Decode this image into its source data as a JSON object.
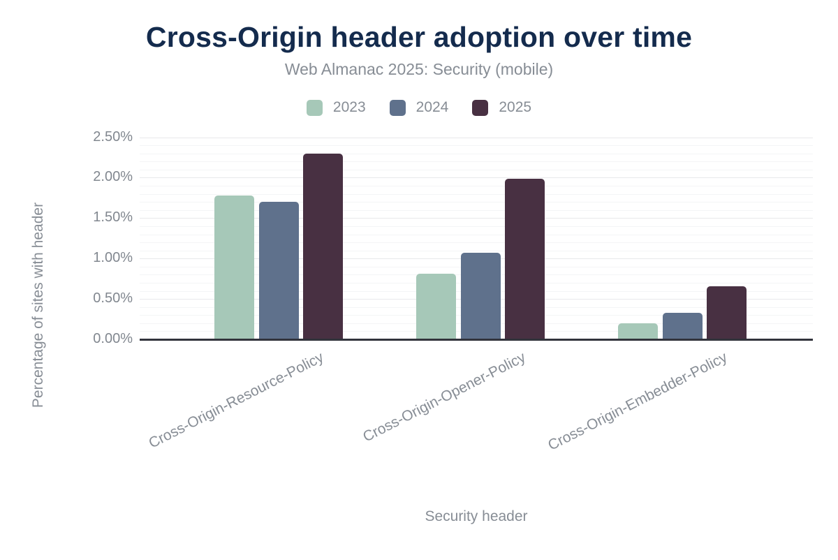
{
  "header": {
    "title": "Cross-Origin header adoption over time",
    "subtitle": "Web Almanac 2025: Security (mobile)"
  },
  "chart_data": {
    "type": "bar",
    "title": "Cross-Origin header adoption over time",
    "subtitle": "Web Almanac 2025: Security (mobile)",
    "categories": [
      "Cross-Origin-Resource-Policy",
      "Cross-Origin-Opener-Policy",
      "Cross-Origin-Embedder-Policy"
    ],
    "series": [
      {
        "name": "2023",
        "color": "#a6c8b8",
        "values": [
          1.78,
          0.81,
          0.2
        ]
      },
      {
        "name": "2024",
        "color": "#5f718c",
        "values": [
          1.7,
          1.07,
          0.33
        ]
      },
      {
        "name": "2025",
        "color": "#483042",
        "values": [
          2.3,
          1.99,
          0.66
        ]
      }
    ],
    "xlabel": "Security header",
    "ylabel": "Percentage of sites with header",
    "ylim": [
      0,
      2.5
    ],
    "ytick_step": 0.5,
    "minor_grid_step": 0.1,
    "ytick_labels": [
      "0.00%",
      "0.50%",
      "1.00%",
      "1.50%",
      "2.00%",
      "2.50%"
    ],
    "legend_position": "top",
    "grid": true
  },
  "colors": {
    "title": "#142b4d",
    "secondary_text": "#878d95",
    "tick_text": "#81878f",
    "axis_line": "#32343c",
    "grid_major": "#e8e9eb",
    "grid_minor": "#f4f5f6",
    "background": "#ffffff"
  }
}
